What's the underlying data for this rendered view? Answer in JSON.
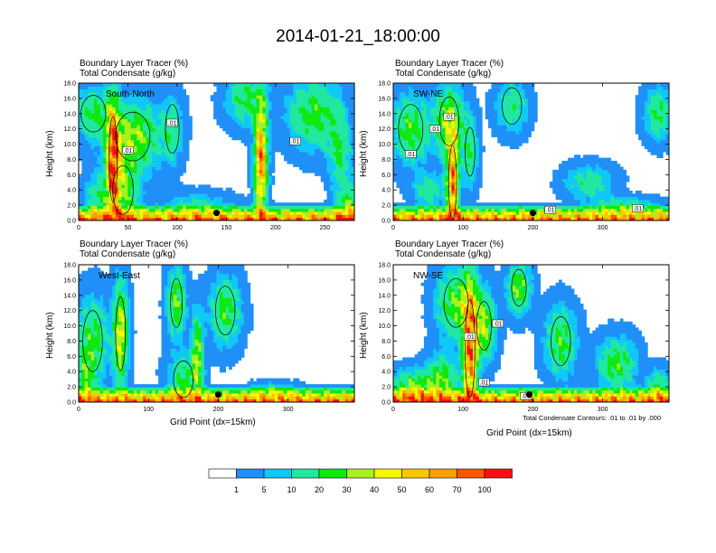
{
  "page_title": "2014-01-21_18:00:00",
  "contour_note": "Total Condensate Contours: .01 to .01 by .000",
  "chart_data": [
    {
      "type": "heatmap",
      "name": "South-North",
      "title_line1": "Boundary Layer Tracer   (%)",
      "title_line2": "Total Condensate   (g/kg)",
      "panel_label": "South-North",
      "ylabel": "Height (km)",
      "xlabel": "",
      "xlim": [
        0,
        280
      ],
      "ylim": [
        0,
        18
      ],
      "xticks": [
        0,
        50,
        100,
        150,
        200,
        250
      ],
      "yticks": [
        "0.0",
        "2.0",
        "4.0",
        "6.0",
        "8.0",
        "10.0",
        "12.0",
        "14.0",
        "16.0",
        "18.0"
      ],
      "contour_labels": [
        {
          "x": 50,
          "y": 9.2,
          "text": ".01"
        },
        {
          "x": 95,
          "y": 12.8,
          "text": ".01"
        },
        {
          "x": 220,
          "y": 10.4,
          "text": ".01"
        }
      ],
      "marker": {
        "x": 140,
        "y": 1.0
      }
    },
    {
      "type": "heatmap",
      "name": "SW-NE",
      "title_line1": "Boundary Layer Tracer   (%)",
      "title_line2": "Total Condensate   (g/kg)",
      "panel_label": "SW-NE",
      "ylabel": "Height (km)",
      "xlabel": "",
      "xlim": [
        0,
        395
      ],
      "ylim": [
        0,
        18
      ],
      "xticks": [
        0,
        100,
        200,
        300
      ],
      "yticks": [
        "0.0",
        "2.0",
        "4.0",
        "6.0",
        "8.0",
        "10.0",
        "12.0",
        "14.0",
        "16.0",
        "18.0"
      ],
      "contour_labels": [
        {
          "x": 25,
          "y": 8.7,
          "text": ".01"
        },
        {
          "x": 60,
          "y": 12.0,
          "text": ".01"
        },
        {
          "x": 80,
          "y": 13.6,
          "text": ".01"
        },
        {
          "x": 225,
          "y": 1.4,
          "text": ".01"
        },
        {
          "x": 350,
          "y": 1.6,
          "text": ".01"
        }
      ],
      "marker": {
        "x": 200,
        "y": 1.0
      }
    },
    {
      "type": "heatmap",
      "name": "West-East",
      "title_line1": "Boundary Layer Tracer   (%)",
      "title_line2": "Total Condensate   (g/kg)",
      "panel_label": "West-East",
      "ylabel": "Height (km)",
      "xlabel": "Grid Point (dx=15km)",
      "xlim": [
        0,
        395
      ],
      "ylim": [
        0,
        18
      ],
      "xticks": [
        0,
        100,
        200,
        300
      ],
      "yticks": [
        "0.0",
        "2.0",
        "4.0",
        "6.0",
        "8.0",
        "10.0",
        "12.0",
        "14.0",
        "16.0",
        "18.0"
      ],
      "contour_labels": [],
      "marker": {
        "x": 200,
        "y": 1.0
      }
    },
    {
      "type": "heatmap",
      "name": "NW-SE",
      "title_line1": "Boundary Layer Tracer   (%)",
      "title_line2": "Total Condensate   (g/kg)",
      "panel_label": "NW-SE",
      "ylabel": "Height (km)",
      "xlabel": "Grid Point (dx=15km)",
      "xlim": [
        0,
        395
      ],
      "ylim": [
        0,
        18
      ],
      "xticks": [
        0,
        100,
        200,
        300
      ],
      "yticks": [
        "0.0",
        "2.0",
        "4.0",
        "6.0",
        "8.0",
        "10.0",
        "12.0",
        "14.0",
        "16.0",
        "18.0"
      ],
      "contour_labels": [
        {
          "x": 110,
          "y": 8.6,
          "text": ".01"
        },
        {
          "x": 150,
          "y": 10.3,
          "text": ".01"
        },
        {
          "x": 130,
          "y": 2.6,
          "text": ".01"
        },
        {
          "x": 190,
          "y": 0.8,
          "text": ".01"
        }
      ],
      "marker": {
        "x": 195,
        "y": 1.0
      }
    }
  ],
  "colorbar": {
    "colors": [
      "#ffffff",
      "#2090f8",
      "#10c8f8",
      "#20e8a0",
      "#10e810",
      "#a8f020",
      "#f8f800",
      "#f8c800",
      "#f8a000",
      "#f85800",
      "#f81010"
    ],
    "labels": [
      "1",
      "5",
      "10",
      "20",
      "30",
      "40",
      "50",
      "60",
      "70",
      "100"
    ]
  }
}
